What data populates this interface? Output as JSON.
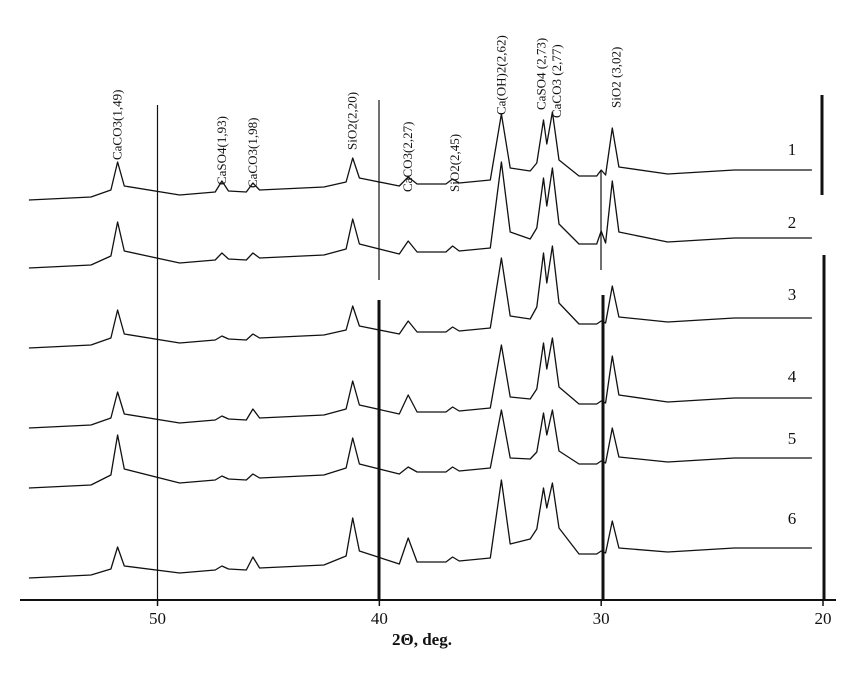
{
  "chart_data": {
    "type": "line",
    "xlabel": "2Θ, deg.",
    "xlim": [
      56.2,
      20
    ],
    "xticks": [
      50,
      40,
      30,
      20
    ],
    "ylim": [
      0,
      580
    ],
    "x": [
      55.8,
      53,
      52.1,
      51.8,
      51.5,
      49,
      47.4,
      47.1,
      46.8,
      46,
      45.7,
      45.4,
      42.5,
      41.5,
      41.2,
      40.9,
      39.1,
      38.7,
      38.3,
      37,
      36.7,
      36.4,
      35,
      34.5,
      34.1,
      33.2,
      32.9,
      32.6,
      32.45,
      32.2,
      31.9,
      31,
      30.2,
      30.0,
      29.8,
      29.5,
      29.2,
      27,
      24,
      20.5
    ],
    "series": [
      {
        "name": "1",
        "color": "#111111",
        "values": [
          400,
          403,
          410,
          438,
          414,
          405,
          408,
          419,
          409,
          408,
          417,
          410,
          413,
          418,
          442,
          422,
          414,
          423,
          416,
          416,
          421,
          417,
          420,
          486,
          432,
          429,
          437,
          480,
          456,
          488,
          440,
          424,
          424,
          430,
          425,
          472,
          433,
          426,
          430,
          430
        ]
      },
      {
        "name": "2",
        "color": "#111111",
        "values": [
          332,
          335,
          344,
          378,
          349,
          337,
          340,
          347,
          341,
          340,
          347,
          342,
          345,
          351,
          381,
          356,
          346,
          359,
          348,
          348,
          354,
          349,
          352,
          438,
          368,
          361,
          372,
          422,
          394,
          432,
          376,
          356,
          356,
          369,
          357,
          419,
          368,
          358,
          362,
          362
        ]
      },
      {
        "name": "3",
        "color": "#111111",
        "values": [
          252,
          255,
          262,
          290,
          266,
          257,
          260,
          264,
          261,
          260,
          266,
          262,
          265,
          270,
          294,
          274,
          266,
          279,
          268,
          268,
          273,
          269,
          272,
          342,
          284,
          281,
          293,
          347,
          317,
          354,
          297,
          276,
          276,
          279,
          277,
          314,
          283,
          278,
          282,
          282
        ]
      },
      {
        "name": "4",
        "color": "#111111",
        "values": [
          172,
          175,
          182,
          208,
          186,
          177,
          180,
          184,
          181,
          180,
          191,
          182,
          185,
          191,
          219,
          195,
          186,
          205,
          188,
          188,
          193,
          189,
          192,
          255,
          203,
          201,
          211,
          257,
          231,
          262,
          213,
          196,
          196,
          199,
          197,
          244,
          205,
          198,
          202,
          202
        ]
      },
      {
        "name": "5",
        "color": "#111111",
        "values": [
          112,
          115,
          125,
          165,
          131,
          117,
          120,
          124,
          121,
          120,
          126,
          122,
          125,
          132,
          162,
          136,
          126,
          133,
          128,
          128,
          133,
          129,
          132,
          190,
          142,
          141,
          148,
          187,
          165,
          190,
          149,
          136,
          136,
          139,
          137,
          172,
          143,
          138,
          142,
          142
        ]
      },
      {
        "name": "6",
        "color": "#111111",
        "values": [
          22,
          25,
          31,
          53,
          34,
          27,
          30,
          34,
          31,
          30,
          43,
          32,
          35,
          44,
          82,
          49,
          36,
          62,
          38,
          38,
          43,
          39,
          42,
          120,
          56,
          61,
          71,
          112,
          92,
          117,
          72,
          46,
          46,
          49,
          47,
          79,
          52,
          48,
          52,
          52
        ]
      }
    ],
    "annotations": [
      {
        "text": "CaCO3(1,49)",
        "x": 51.8
      },
      {
        "text": "CaSO4(1,93)",
        "x": 47.1
      },
      {
        "text": "CaCO3(1,98)",
        "x": 45.7
      },
      {
        "text": "SiO2(2,20)",
        "x": 41.2
      },
      {
        "text": "CaCO3(2,27)",
        "x": 38.7
      },
      {
        "text": "SiO2(2,45)",
        "x": 36.6
      },
      {
        "text": "Ca(OH)2(2,62)",
        "x": 34.5
      },
      {
        "text": "CaSO4 (2,73)",
        "x": 32.7
      },
      {
        "text": "CaCO3 (2,77)",
        "x": 32.0
      },
      {
        "text": "SiO2 (3,02)",
        "x": 29.3
      }
    ]
  }
}
